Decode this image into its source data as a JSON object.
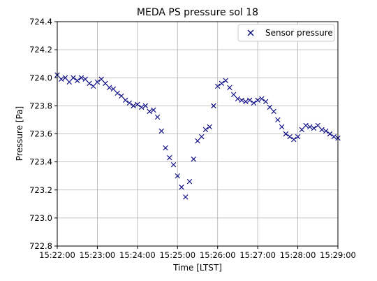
{
  "chart_data": {
    "type": "scatter",
    "title": "MEDA PS pressure sol 18",
    "xlabel": "Time [LTST]",
    "ylabel": "Pressure [Pa]",
    "xlim": [
      "15:22:00",
      "15:29:00"
    ],
    "ylim": [
      722.8,
      724.4
    ],
    "xticks": [
      "15:22:00",
      "15:23:00",
      "15:24:00",
      "15:25:00",
      "15:26:00",
      "15:27:00",
      "15:28:00",
      "15:29:00"
    ],
    "yticks": [
      "722.8",
      "723.0",
      "723.2",
      "723.4",
      "723.6",
      "723.8",
      "724.0",
      "724.2",
      "724.4"
    ],
    "grid": true,
    "legend_position": "top-right",
    "marker": "x",
    "color": "#000080",
    "series": [
      {
        "name": "Sensor pressure",
        "x": [
          "15:22:00",
          "15:22:06",
          "15:22:12",
          "15:22:18",
          "15:22:24",
          "15:22:30",
          "15:22:36",
          "15:22:42",
          "15:22:48",
          "15:22:54",
          "15:23:00",
          "15:23:06",
          "15:23:12",
          "15:23:18",
          "15:23:24",
          "15:23:30",
          "15:23:36",
          "15:23:42",
          "15:23:48",
          "15:23:54",
          "15:24:00",
          "15:24:06",
          "15:24:12",
          "15:24:18",
          "15:24:24",
          "15:24:30",
          "15:24:36",
          "15:24:42",
          "15:24:48",
          "15:24:54",
          "15:25:00",
          "15:25:06",
          "15:25:12",
          "15:25:18",
          "15:25:24",
          "15:25:30",
          "15:25:36",
          "15:25:42",
          "15:25:48",
          "15:25:54",
          "15:26:00",
          "15:26:06",
          "15:26:12",
          "15:26:18",
          "15:26:24",
          "15:26:30",
          "15:26:36",
          "15:26:42",
          "15:26:48",
          "15:26:54",
          "15:27:00",
          "15:27:06",
          "15:27:12",
          "15:27:18",
          "15:27:24",
          "15:27:30",
          "15:27:36",
          "15:27:42",
          "15:27:48",
          "15:27:54",
          "15:28:00",
          "15:28:06",
          "15:28:12",
          "15:28:18",
          "15:28:24",
          "15:28:30",
          "15:28:36",
          "15:28:42",
          "15:28:48",
          "15:28:54",
          "15:29:00"
        ],
        "y": [
          724.02,
          723.99,
          724.0,
          723.97,
          724.0,
          723.98,
          724.0,
          723.99,
          723.96,
          723.94,
          723.97,
          723.99,
          723.96,
          723.93,
          723.92,
          723.89,
          723.87,
          723.84,
          723.82,
          723.8,
          723.81,
          723.79,
          723.8,
          723.76,
          723.77,
          723.72,
          723.62,
          723.5,
          723.43,
          723.38,
          723.3,
          723.22,
          723.15,
          723.26,
          723.42,
          723.55,
          723.58,
          723.63,
          723.65,
          723.8,
          723.94,
          723.96,
          723.98,
          723.93,
          723.88,
          723.85,
          723.84,
          723.83,
          723.84,
          723.82,
          723.84,
          723.85,
          723.83,
          723.79,
          723.76,
          723.7,
          723.65,
          723.6,
          723.58,
          723.56,
          723.58,
          723.63,
          723.66,
          723.65,
          723.64,
          723.66,
          723.63,
          723.62,
          723.6,
          723.58,
          723.57
        ]
      }
    ]
  }
}
